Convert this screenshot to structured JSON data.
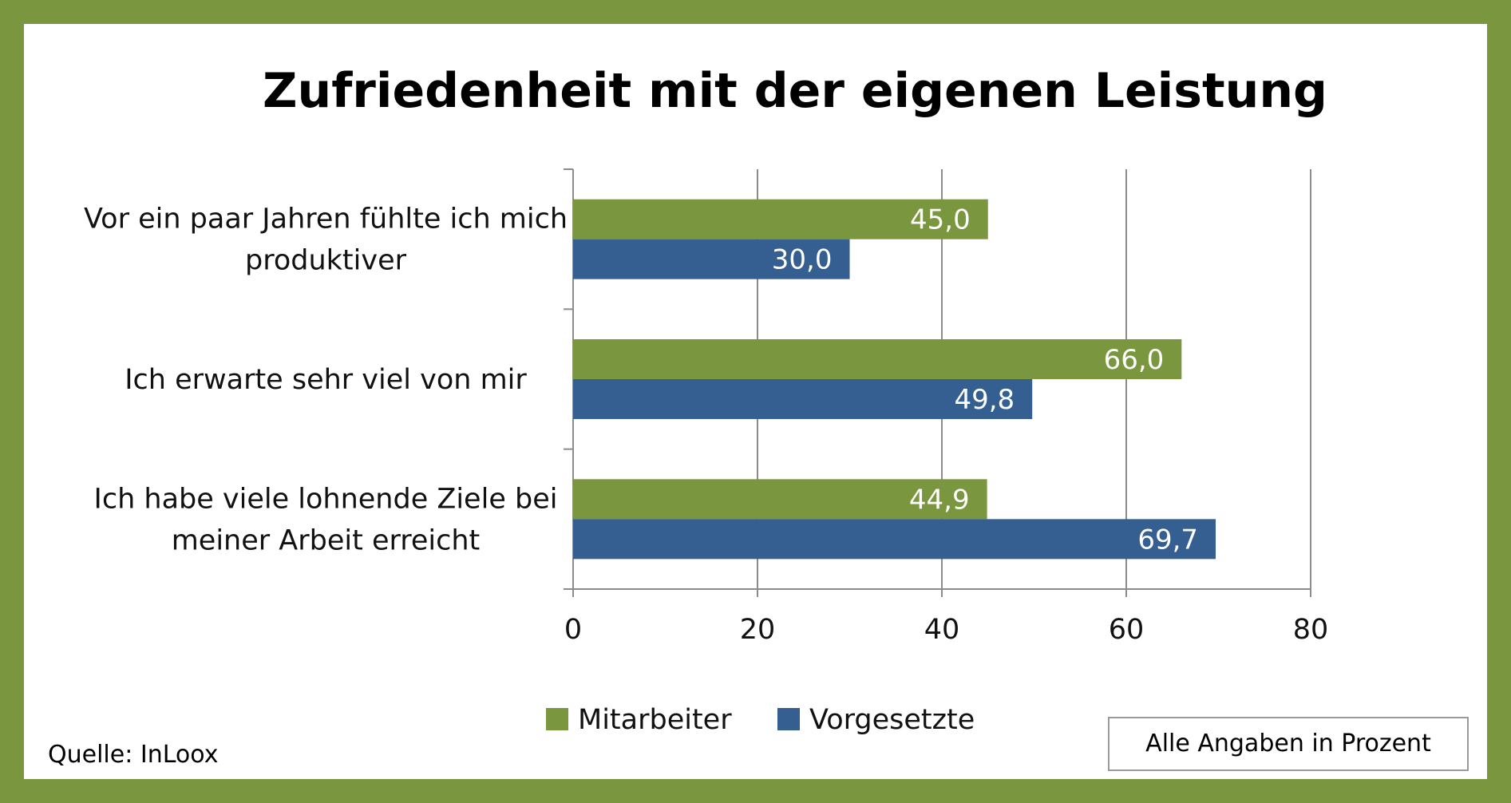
{
  "chart_data": {
    "type": "bar",
    "orientation": "horizontal",
    "title": "Zufriedenheit mit der eigenen Leistung",
    "categories": [
      [
        "Vor ein paar Jahren fühlte ich mich",
        "produktiver"
      ],
      [
        "Ich erwarte sehr viel von mir"
      ],
      [
        "Ich habe viele lohnende Ziele bei",
        "meiner Arbeit erreicht"
      ]
    ],
    "series": [
      {
        "name": "Mitarbeiter",
        "color": "#7a963e",
        "values": [
          45.0,
          66.0,
          44.9
        ],
        "labels": [
          "45,0",
          "66,0",
          "44,9"
        ]
      },
      {
        "name": "Vorgesetzte",
        "color": "#355f91",
        "values": [
          30.0,
          49.8,
          69.7
        ],
        "labels": [
          "30,0",
          "49,8",
          "69,7"
        ]
      }
    ],
    "xlim": [
      0,
      80
    ],
    "xticks": [
      "0",
      "20",
      "40",
      "60",
      "80"
    ],
    "grid": true,
    "legend": "bottom"
  },
  "footer": {
    "source": "Quelle: InLoox",
    "note": "Alle Angaben in Prozent"
  }
}
